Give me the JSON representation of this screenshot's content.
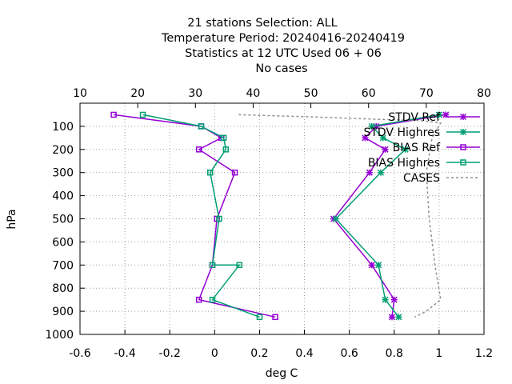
{
  "title_lines": [
    "21 stations Selection: ALL",
    "Temperature  Period: 20240416-20240419",
    "Statistics at 12 UTC  Used  06 + 06",
    "No cases"
  ],
  "chart_data": {
    "type": "line",
    "xlabel": "deg C",
    "ylabel": "hPa",
    "xlim": [
      -0.6,
      1.2
    ],
    "x2lim": [
      10,
      80
    ],
    "ylim": [
      1000,
      0
    ],
    "x_ticks": [
      -0.6,
      -0.4,
      -0.2,
      0,
      0.2,
      0.4,
      0.6,
      0.8,
      1,
      1.2
    ],
    "x_tick_labels": [
      "-0.6",
      "-0.4",
      "-0.2",
      "0",
      "0.2",
      "0.4",
      "0.6",
      "0.8",
      "1",
      "1.2"
    ],
    "x2_ticks": [
      10,
      20,
      30,
      40,
      50,
      60,
      70,
      80
    ],
    "x2_tick_labels": [
      "10",
      "20",
      "30",
      "40",
      "50",
      "60",
      "70",
      "80"
    ],
    "y_ticks": [
      100,
      200,
      300,
      400,
      500,
      600,
      700,
      800,
      900,
      1000
    ],
    "y_tick_labels": [
      "100",
      "200",
      "300",
      "400",
      "500",
      "600",
      "700",
      "800",
      "900",
      "1000"
    ],
    "grid": true,
    "legend_position": "top-right",
    "series": [
      {
        "name": "STDV Ref",
        "axis": "x",
        "color": "#9400d3",
        "marker": "x-cross",
        "points": [
          [
            1.03,
            50
          ],
          [
            0.72,
            100
          ],
          [
            0.67,
            150
          ],
          [
            0.76,
            200
          ],
          [
            0.69,
            300
          ],
          [
            0.53,
            500
          ],
          [
            0.7,
            700
          ],
          [
            0.8,
            850
          ],
          [
            0.79,
            925
          ]
        ]
      },
      {
        "name": "STDV Highres",
        "axis": "x",
        "color": "#009e73",
        "marker": "x-cross",
        "points": [
          [
            1.0,
            50
          ],
          [
            0.7,
            100
          ],
          [
            0.75,
            150
          ],
          [
            0.85,
            200
          ],
          [
            0.74,
            300
          ],
          [
            0.54,
            500
          ],
          [
            0.73,
            700
          ],
          [
            0.76,
            850
          ],
          [
            0.82,
            925
          ]
        ]
      },
      {
        "name": "BIAS Ref",
        "axis": "x",
        "color": "#9400d3",
        "marker": "square",
        "points": [
          [
            -0.45,
            50
          ],
          [
            -0.06,
            100
          ],
          [
            0.03,
            150
          ],
          [
            -0.07,
            200
          ],
          [
            0.09,
            300
          ],
          [
            0.01,
            500
          ],
          [
            -0.01,
            700
          ],
          [
            -0.07,
            850
          ],
          [
            0.27,
            925
          ]
        ]
      },
      {
        "name": "BIAS Highres",
        "axis": "x",
        "color": "#009e73",
        "marker": "square",
        "points": [
          [
            -0.32,
            50
          ],
          [
            -0.06,
            100
          ],
          [
            0.04,
            150
          ],
          [
            0.05,
            200
          ],
          [
            -0.02,
            300
          ],
          [
            0.02,
            500
          ],
          [
            -0.01,
            700
          ],
          [
            0.11,
            700
          ],
          [
            -0.01,
            850
          ],
          [
            0.2,
            925
          ]
        ]
      },
      {
        "name": "CASES",
        "axis": "x2",
        "color": "#909090",
        "marker": "none",
        "dashed": true,
        "points": [
          [
            37.5,
            50
          ],
          [
            51,
            60
          ],
          [
            62,
            70
          ],
          [
            69,
            75
          ],
          [
            72.5,
            85
          ],
          [
            71,
            150
          ],
          [
            70,
            300
          ],
          [
            70.5,
            500
          ],
          [
            71.5,
            700
          ],
          [
            72.5,
            850
          ],
          [
            70,
            900
          ],
          [
            68,
            925
          ]
        ]
      }
    ]
  }
}
